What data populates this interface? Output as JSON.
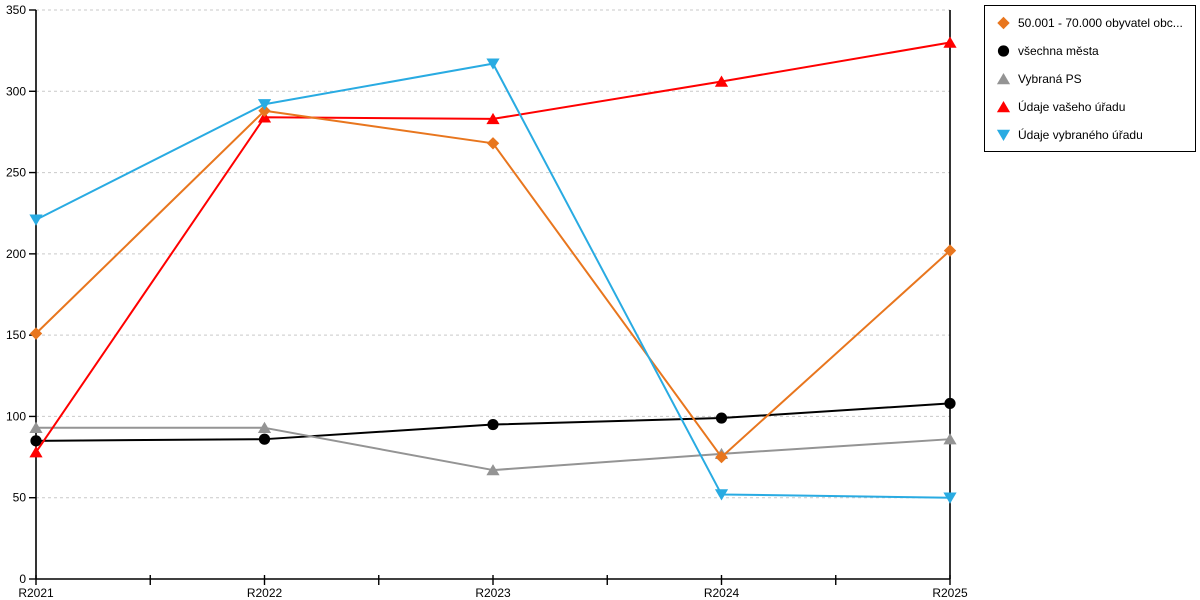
{
  "chart_data": {
    "type": "line",
    "title": "",
    "xlabel": "",
    "ylabel": "",
    "categories": [
      "R2021",
      "R2022",
      "R2023",
      "R2024",
      "R2025"
    ],
    "series": [
      {
        "name": "50.001 - 70.000 obyvatel obc...",
        "color": "#E8761E",
        "marker": "diamond",
        "values": [
          151,
          288,
          268,
          75,
          202
        ]
      },
      {
        "name": "všechna města",
        "color": "#000000",
        "marker": "circle",
        "values": [
          85,
          86,
          95,
          99,
          108
        ]
      },
      {
        "name": "Vybraná PS",
        "color": "#949494",
        "marker": "triangle-up",
        "values": [
          93,
          93,
          67,
          77,
          86
        ]
      },
      {
        "name": "Údaje vašeho úřadu",
        "color": "#FF0000",
        "marker": "triangle-up",
        "values": [
          78,
          284,
          283,
          306,
          330
        ]
      },
      {
        "name": "Údaje vybraného úřadu",
        "color": "#29ABE2",
        "marker": "triangle-down",
        "values": [
          221,
          292,
          317,
          52,
          50
        ]
      }
    ],
    "ylim": [
      0,
      350
    ],
    "ytick_step": 50,
    "yticks": [
      0,
      50,
      100,
      150,
      200,
      250,
      300,
      350
    ],
    "grid": "horizontal-dashed",
    "legend_position": "top-right-outside"
  },
  "colors": {
    "background": "#FFFFFF",
    "axis": "#000000",
    "grid": "#C9C9C9",
    "legend_border": "#000000",
    "text": "#000000"
  }
}
